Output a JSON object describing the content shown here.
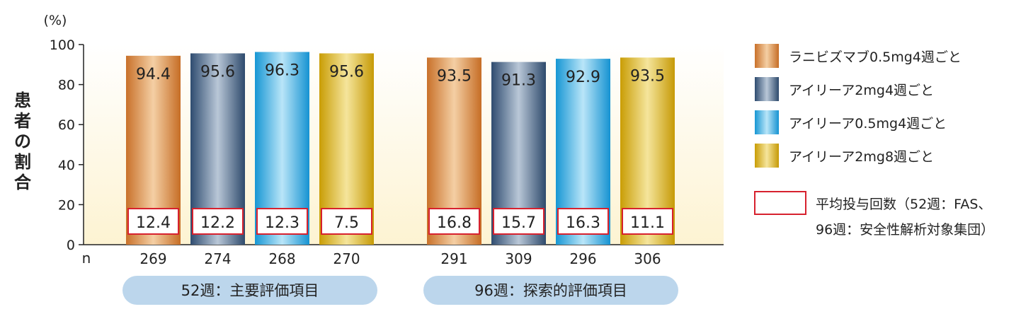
{
  "chart_data": {
    "type": "bar",
    "yunit": "(%)",
    "ylabel": "患者の割合",
    "ylim": [
      0,
      100
    ],
    "yticks": [
      0,
      20,
      40,
      60,
      80,
      100
    ],
    "n_label": "n",
    "grid": false,
    "legend_position": "right",
    "groups": [
      {
        "label": "52週：主要評価項目",
        "values": [
          94.4,
          95.6,
          96.3,
          95.6
        ],
        "box_values": [
          "12.4",
          "12.2",
          "12.3",
          "7.5"
        ],
        "n": [
          "269",
          "274",
          "268",
          "270"
        ]
      },
      {
        "label": "96週：探索的評価項目",
        "values": [
          93.5,
          91.3,
          92.9,
          93.5
        ],
        "box_values": [
          "16.8",
          "15.7",
          "16.3",
          "11.1"
        ],
        "n": [
          "291",
          "309",
          "296",
          "306"
        ]
      }
    ],
    "series": [
      {
        "name": "ラニビズマブ0.5mg4週ごと",
        "color": "#d98a3c"
      },
      {
        "name": "アイリーア2mg4週ごと",
        "color": "#3e5f86"
      },
      {
        "name": "アイリーア0.5mg4週ごと",
        "color": "#27a6e0"
      },
      {
        "name": "アイリーア2mg8週ごと",
        "color": "#d4ab0e"
      }
    ],
    "box_legend": {
      "line1": "平均投与回数（52週：FAS、",
      "line2": "96週：安全性解析対象集団）"
    },
    "colors": {
      "box_border": "#d7212e",
      "pill": "#bcd6ec",
      "background_fade": "#fdf3d2"
    }
  }
}
